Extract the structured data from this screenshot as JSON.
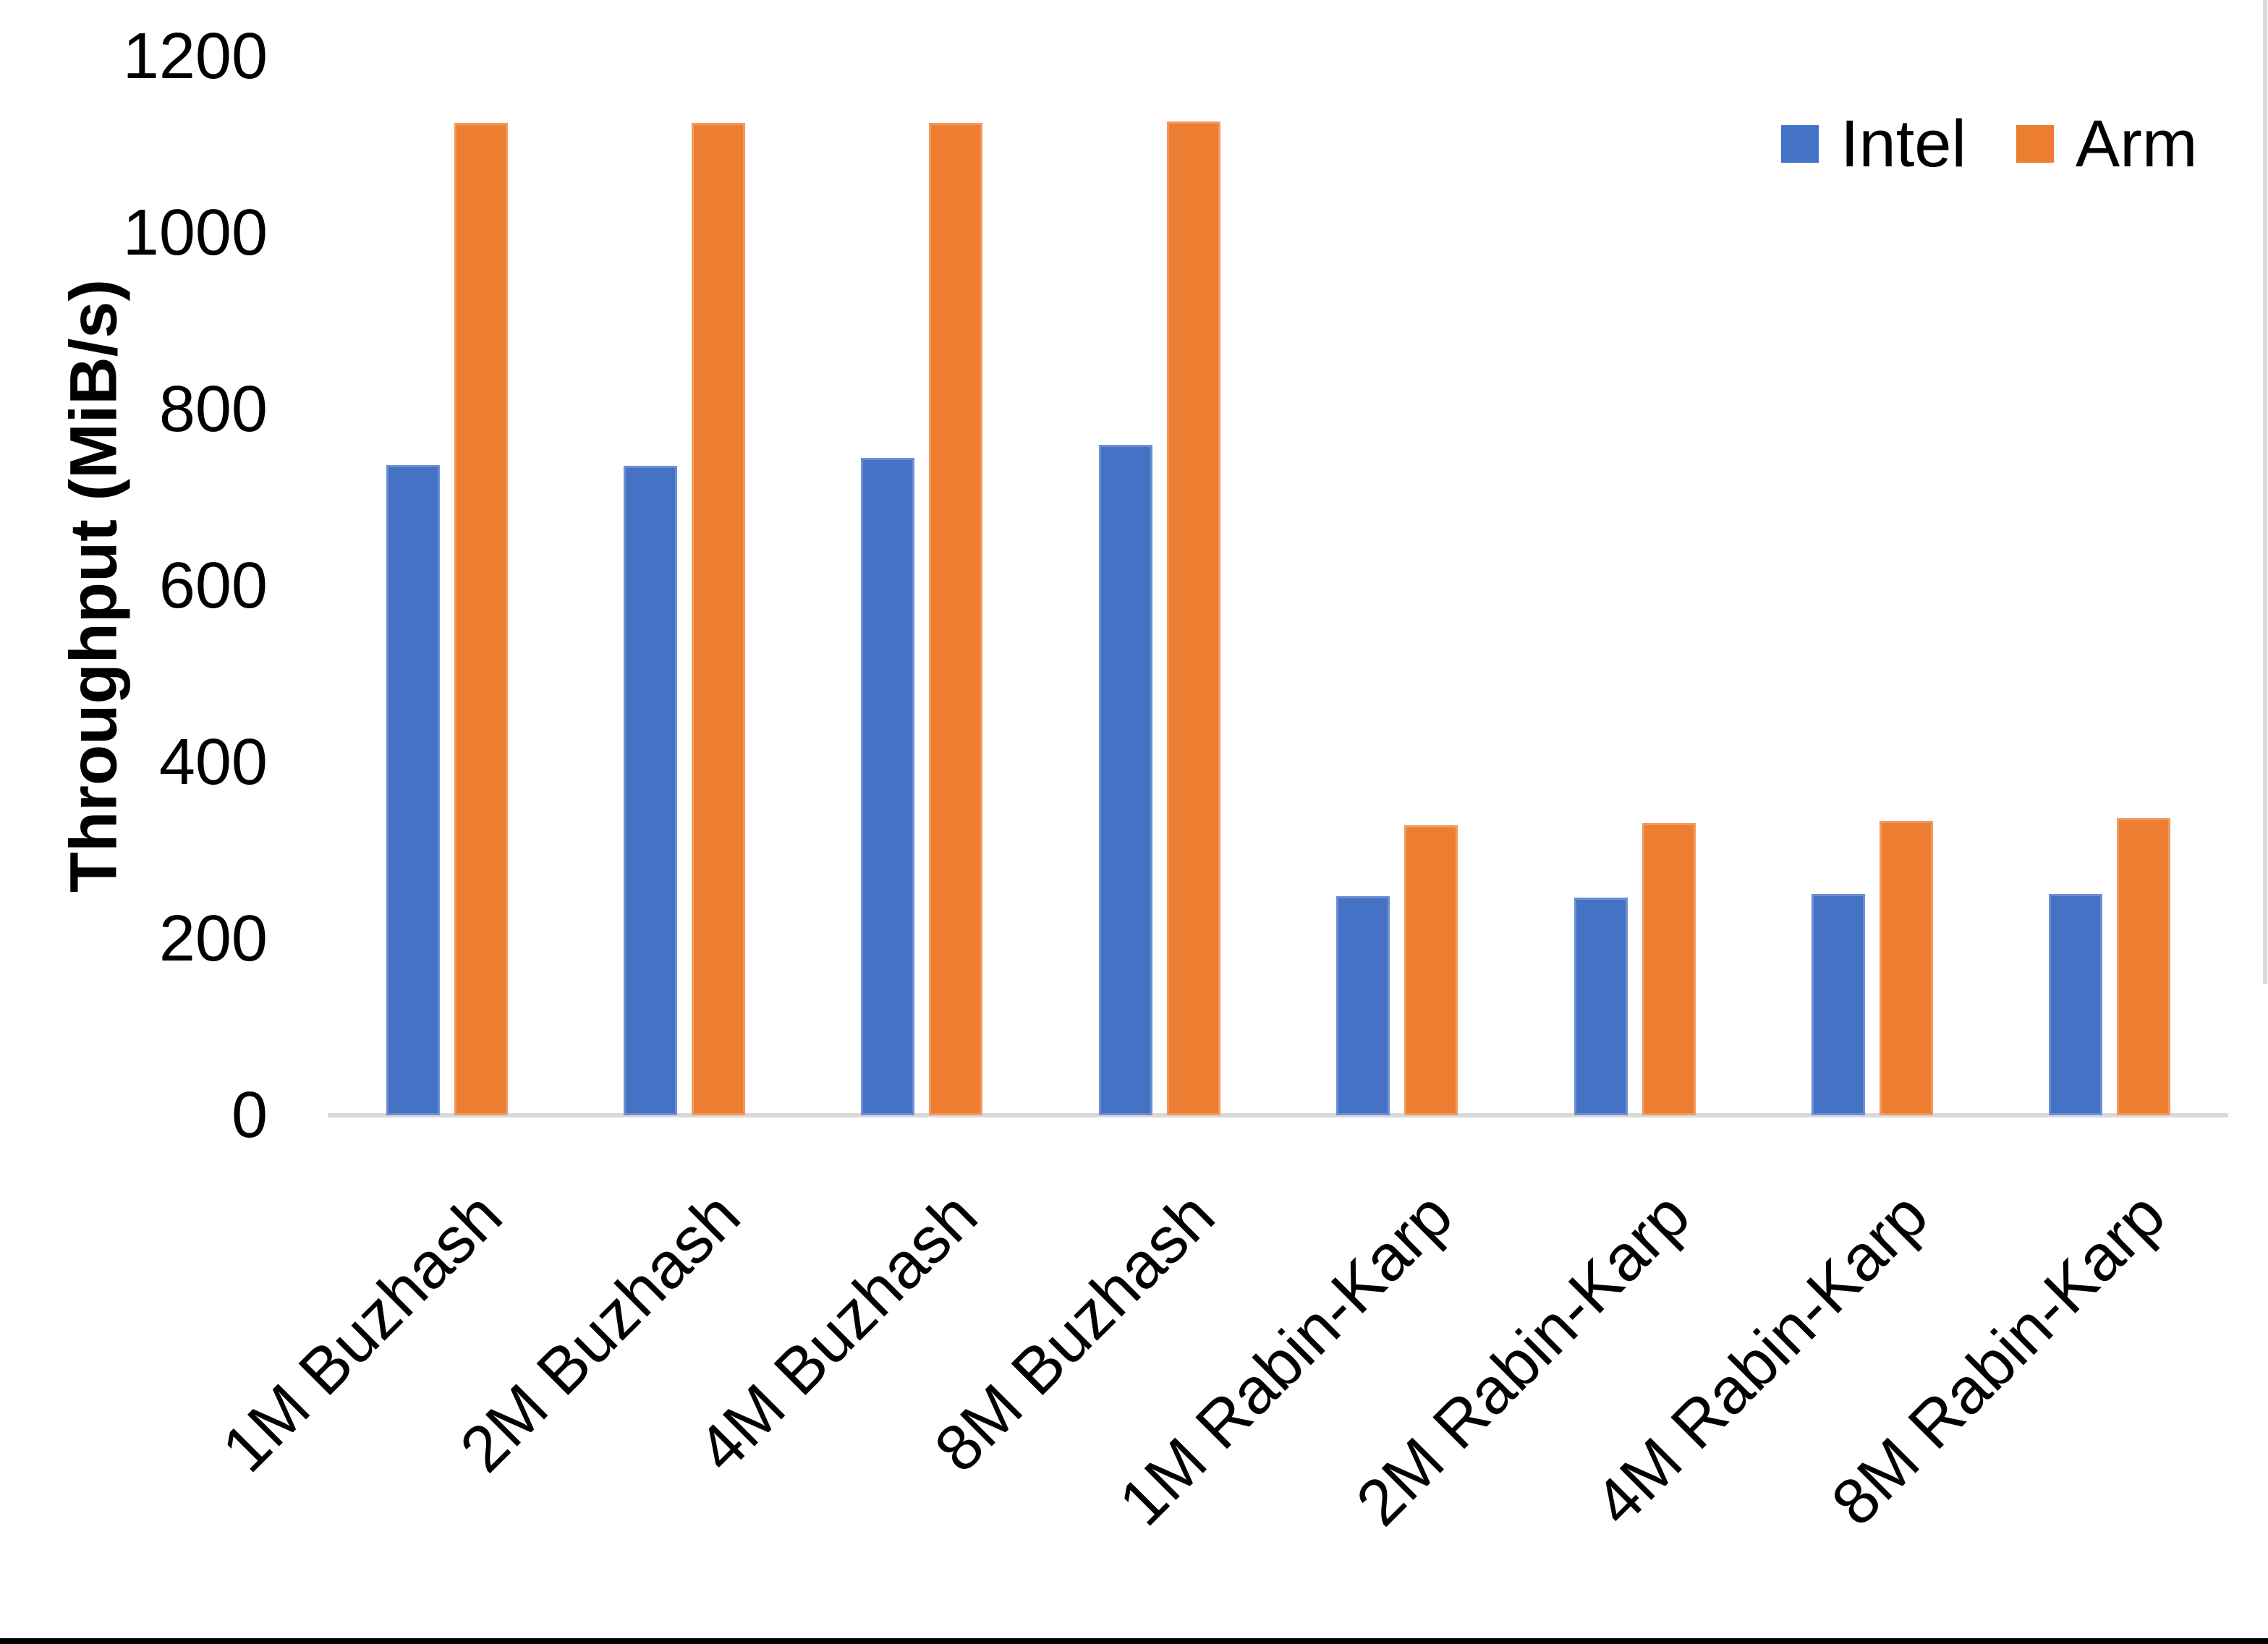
{
  "chart_data": {
    "type": "bar",
    "title": "",
    "categories": [
      "1M Buzhash",
      "2M Buzhash",
      "4M Buzhash",
      "8M Buzhash",
      "1M Rabin-Karp",
      "2M Rabin-Karp",
      "4M Rabin-Karp",
      "8M Rabin-Karp"
    ],
    "series": [
      {
        "name": "Intel",
        "color": "#4472C4",
        "border_color": "#6E8FD2",
        "values": [
          737,
          736,
          745,
          760,
          248,
          247,
          251,
          251
        ]
      },
      {
        "name": "Arm",
        "color": "#ED7D31",
        "border_color": "#F09A5F",
        "values": [
          1125,
          1125,
          1125,
          1126,
          329,
          331,
          334,
          337
        ]
      }
    ],
    "xlabel": "",
    "ylabel": "Throughput (MiB/s)",
    "yticks": [
      0,
      200,
      400,
      600,
      800,
      1000,
      1200
    ],
    "ylim": [
      0,
      1200
    ],
    "grid": "off",
    "legend_position": "top-right",
    "axis_line_color": "#D9D9D9",
    "text_color": "#000000",
    "background_color": "#FFFFFF"
  },
  "decorations": {
    "bottom_edge_bar_color": "#000000",
    "right_edge_line_color": "#D9D9D9"
  }
}
